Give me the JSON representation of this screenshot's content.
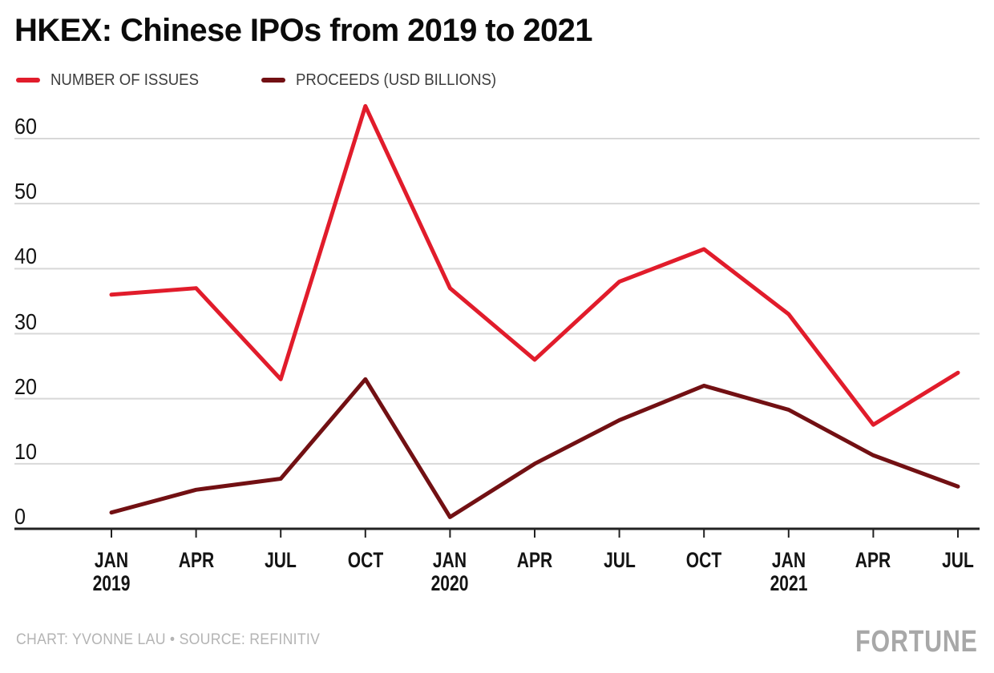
{
  "title": "HKEX: Chinese IPOs from 2019 to 2021",
  "legend": {
    "items": [
      {
        "label": "NUMBER OF ISSUES",
        "color": "#e11c2b"
      },
      {
        "label": "PROCEEDS (USD BILLIONS)",
        "color": "#721013"
      }
    ]
  },
  "footer": {
    "credit": "CHART: YVONNE LAU • SOURCE: REFINITIV",
    "brand": "FORTUNE"
  },
  "colors": {
    "background": "#ffffff",
    "grid": "#d8d8d8",
    "axis": "#222222",
    "label": "#141414",
    "legend_text": "#3d3d3d",
    "credit": "#b4b4b4",
    "brand": "#a8a8a8",
    "issues_line": "#e11c2b",
    "proceeds_line": "#721013"
  },
  "chart_data": {
    "type": "line",
    "title": "HKEX: Chinese IPOs from 2019 to 2021",
    "categories": [
      "JAN 2019",
      "APR 2019",
      "JUL 2019",
      "OCT 2019",
      "JAN 2020",
      "APR 2020",
      "JUL 2020",
      "OCT 2020",
      "JAN 2021",
      "APR 2021",
      "JUL 2021"
    ],
    "x_tick_labels": [
      {
        "month": "JAN",
        "year": "2019"
      },
      {
        "month": "APR"
      },
      {
        "month": "JUL"
      },
      {
        "month": "OCT"
      },
      {
        "month": "JAN",
        "year": "2020"
      },
      {
        "month": "APR"
      },
      {
        "month": "JUL"
      },
      {
        "month": "OCT"
      },
      {
        "month": "JAN",
        "year": "2021"
      },
      {
        "month": "APR"
      },
      {
        "month": "JUL"
      }
    ],
    "series": [
      {
        "name": "NUMBER OF ISSUES",
        "color": "#e11c2b",
        "values": [
          36,
          37,
          23,
          65,
          37,
          26,
          38,
          43,
          33,
          16,
          24
        ]
      },
      {
        "name": "PROCEEDS (USD BILLIONS)",
        "color": "#721013",
        "values": [
          2.5,
          6,
          7.7,
          23,
          1.8,
          10,
          16.7,
          22,
          18.3,
          11.3,
          6.5
        ]
      }
    ],
    "y_ticks": [
      0,
      10,
      20,
      30,
      40,
      50,
      60
    ],
    "ylim": [
      0,
      66
    ],
    "xlabel": "",
    "ylabel": "",
    "grid": true,
    "legend_position": "top-left"
  }
}
